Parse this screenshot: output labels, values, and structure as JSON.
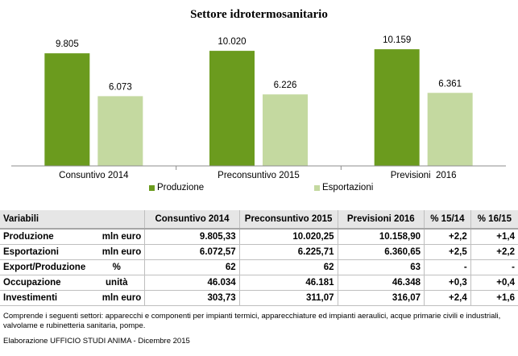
{
  "chart_data": {
    "type": "bar",
    "title": "Settore idrotermosanitario",
    "categories": [
      "Consuntivo 2014",
      "Preconsuntivo 2015",
      "Previsioni  2016"
    ],
    "series": [
      {
        "name": "Produzione",
        "values": [
          9805,
          10020,
          10159
        ],
        "labels": [
          "9.805",
          "10.020",
          "10.159"
        ],
        "color": "#6b9b1e"
      },
      {
        "name": "Esportazioni",
        "values": [
          6073,
          6226,
          6361
        ],
        "labels": [
          "6.073",
          "6.226",
          "6.361"
        ],
        "color": "#c4d9a0"
      }
    ],
    "ylim": [
      0,
      11500
    ],
    "grid": false,
    "legend": "bottom"
  },
  "table": {
    "headers": [
      "Variabili",
      "",
      "Consuntivo 2014",
      "Preconsuntivo 2015",
      "Previsioni  2016",
      "% 15/14",
      "% 16/15"
    ],
    "rows": [
      [
        "Produzione",
        "mln euro",
        "9.805,33",
        "10.020,25",
        "10.158,90",
        "+2,2",
        "+1,4"
      ],
      [
        "Esportazioni",
        "mln euro",
        "6.072,57",
        "6.225,71",
        "6.360,65",
        "+2,5",
        "+2,2"
      ],
      [
        "Export/Produzione",
        "%",
        "62",
        "62",
        "63",
        "-",
        "-"
      ],
      [
        "Occupazione",
        "unità",
        "46.034",
        "46.181",
        "46.348",
        "+0,3",
        "+0,4"
      ],
      [
        "Investimenti",
        "mln euro",
        "303,73",
        "311,07",
        "316,07",
        "+2,4",
        "+1,6"
      ]
    ]
  },
  "note": "Comprende i seguenti settori: apparecchi e componenti per impianti termici, apparecchiature ed impianti aeraulici, acque primarie civili e industriali, valvolame e rubinetteria sanitaria, pompe.",
  "source": "Elaborazione UFFICIO STUDI ANIMA - Dicembre 2015"
}
